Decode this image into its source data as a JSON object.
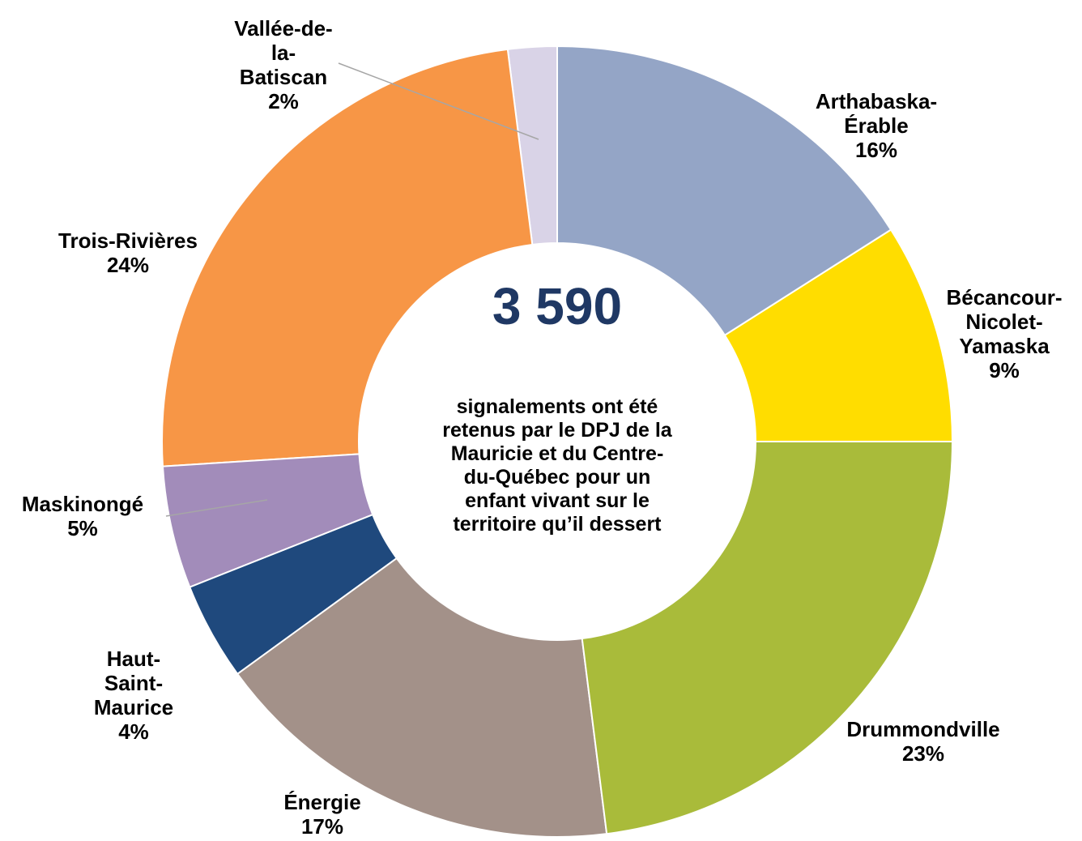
{
  "chart_data": {
    "type": "donut",
    "categories": [
      "Arthabaska-Érable",
      "Bécancour-Nicolet-Yamaska",
      "Drummondville",
      "Énergie",
      "Haut-Saint-Maurice",
      "Maskinongé",
      "Trois-Rivières",
      "Vallée-de-la-Batiscan"
    ],
    "values": [
      16,
      9,
      23,
      17,
      4,
      5,
      24,
      2
    ],
    "value_labels": [
      "16%",
      "9%",
      "23%",
      "17%",
      "4%",
      "5%",
      "24%",
      "2%"
    ],
    "colors": [
      "#94a5c6",
      "#ffdd00",
      "#a9bb3a",
      "#a39189",
      "#1f497d",
      "#a28cba",
      "#f79646",
      "#d9d3e7"
    ],
    "center_title": "3 590",
    "center_text": "signalements ont été retenus par le DPJ de la Mauricie et du Centre-du-Québec pour un enfant vivant sur le territoire qu’il dessert"
  }
}
